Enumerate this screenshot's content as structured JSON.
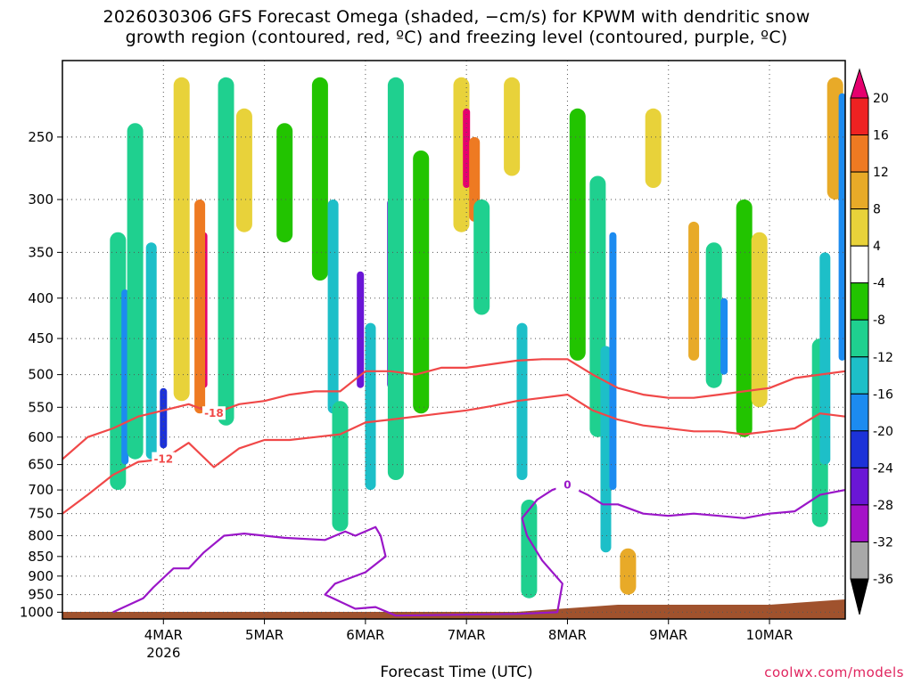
{
  "chart_data": {
    "type": "heatmap",
    "title_lines": [
      "2026030306 GFS Forecast Omega (shaded, −cm/s) for KPWM with dendritic snow",
      "growth region (contoured, red, ºC) and freezing level (contoured, purple, ºC)"
    ],
    "xlabel": "Forecast Time (UTC)",
    "ylabel": "",
    "x_ticks": [
      "4MAR",
      "5MAR",
      "6MAR",
      "7MAR",
      "8MAR",
      "9MAR",
      "10MAR"
    ],
    "x_tick_sub": [
      "2026",
      "",
      "",
      "",
      "",
      "",
      ""
    ],
    "x_range_days": [
      3.0,
      10.75
    ],
    "y_ticks": [
      250,
      300,
      350,
      400,
      450,
      500,
      550,
      600,
      650,
      700,
      750,
      800,
      850,
      900,
      950,
      1000
    ],
    "y_range_hpa": [
      200,
      1020
    ],
    "y_scale": "log-pressure",
    "grid": "dotted",
    "colorbar": {
      "ticks": [
        "20",
        "16",
        "12",
        "8",
        "4",
        "-4",
        "-8",
        "-12",
        "-16",
        "-20",
        "-24",
        "-28",
        "-32",
        "-36"
      ],
      "colors": [
        "#e6006e",
        "#ee2222",
        "#ee7a22",
        "#e8aa28",
        "#e8d23a",
        "#ffffff",
        "#22c400",
        "#1fd08f",
        "#1dbfc8",
        "#1c8bf0",
        "#1c32d8",
        "#6a16d6",
        "#a512c8",
        "#a8a8a8",
        "#000000"
      ]
    },
    "omega_features": [
      {
        "time": 3.55,
        "p_top": 330,
        "p_bot": 700,
        "value": -8
      },
      {
        "time": 3.62,
        "p_top": 390,
        "p_bot": 650,
        "value": -16
      },
      {
        "time": 3.72,
        "p_top": 240,
        "p_bot": 640,
        "value": -8
      },
      {
        "time": 3.88,
        "p_top": 340,
        "p_bot": 640,
        "value": -12
      },
      {
        "time": 4.0,
        "p_top": 520,
        "p_bot": 620,
        "value": -20
      },
      {
        "time": 4.18,
        "p_top": 210,
        "p_bot": 540,
        "value": 6
      },
      {
        "time": 4.4,
        "p_top": 330,
        "p_bot": 520,
        "value": 20
      },
      {
        "time": 4.36,
        "p_top": 300,
        "p_bot": 560,
        "value": 12
      },
      {
        "time": 4.62,
        "p_top": 210,
        "p_bot": 580,
        "value": -8
      },
      {
        "time": 4.8,
        "p_top": 230,
        "p_bot": 330,
        "value": 6
      },
      {
        "time": 5.2,
        "p_top": 240,
        "p_bot": 340,
        "value": -6
      },
      {
        "time": 5.55,
        "p_top": 210,
        "p_bot": 380,
        "value": -6
      },
      {
        "time": 5.68,
        "p_top": 300,
        "p_bot": 560,
        "value": -12
      },
      {
        "time": 5.75,
        "p_top": 540,
        "p_bot": 790,
        "value": -8
      },
      {
        "time": 5.95,
        "p_top": 370,
        "p_bot": 520,
        "value": -24
      },
      {
        "time": 6.05,
        "p_top": 430,
        "p_bot": 700,
        "value": -12
      },
      {
        "time": 6.25,
        "p_top": 300,
        "p_bot": 520,
        "value": -24
      },
      {
        "time": 6.3,
        "p_top": 210,
        "p_bot": 680,
        "value": -8
      },
      {
        "time": 6.55,
        "p_top": 260,
        "p_bot": 560,
        "value": -6
      },
      {
        "time": 6.95,
        "p_top": 210,
        "p_bot": 330,
        "value": 6
      },
      {
        "time": 7.0,
        "p_top": 230,
        "p_bot": 290,
        "value": 20
      },
      {
        "time": 7.08,
        "p_top": 250,
        "p_bot": 320,
        "value": 12
      },
      {
        "time": 7.15,
        "p_top": 300,
        "p_bot": 420,
        "value": -8
      },
      {
        "time": 7.45,
        "p_top": 210,
        "p_bot": 280,
        "value": 6
      },
      {
        "time": 7.55,
        "p_top": 430,
        "p_bot": 680,
        "value": -12
      },
      {
        "time": 7.62,
        "p_top": 720,
        "p_bot": 960,
        "value": -8
      },
      {
        "time": 8.1,
        "p_top": 230,
        "p_bot": 480,
        "value": -6
      },
      {
        "time": 8.3,
        "p_top": 280,
        "p_bot": 600,
        "value": -8
      },
      {
        "time": 8.38,
        "p_top": 460,
        "p_bot": 840,
        "value": -12
      },
      {
        "time": 8.45,
        "p_top": 330,
        "p_bot": 700,
        "value": -16
      },
      {
        "time": 8.6,
        "p_top": 830,
        "p_bot": 950,
        "value": 8
      },
      {
        "time": 8.85,
        "p_top": 230,
        "p_bot": 290,
        "value": 6
      },
      {
        "time": 9.25,
        "p_top": 320,
        "p_bot": 480,
        "value": 10
      },
      {
        "time": 9.45,
        "p_top": 340,
        "p_bot": 520,
        "value": -8
      },
      {
        "time": 9.55,
        "p_top": 400,
        "p_bot": 500,
        "value": -16
      },
      {
        "time": 9.75,
        "p_top": 300,
        "p_bot": 600,
        "value": -6
      },
      {
        "time": 9.9,
        "p_top": 330,
        "p_bot": 550,
        "value": 6
      },
      {
        "time": 10.5,
        "p_top": 450,
        "p_bot": 780,
        "value": -8
      },
      {
        "time": 10.55,
        "p_top": 350,
        "p_bot": 650,
        "value": -14
      },
      {
        "time": 10.65,
        "p_top": 210,
        "p_bot": 300,
        "value": 8
      },
      {
        "time": 10.72,
        "p_top": 220,
        "p_bot": 480,
        "value": -16
      }
    ],
    "dgz_contours": [
      {
        "level": "-18",
        "label_time": 4.5,
        "points": [
          [
            3.0,
            640
          ],
          [
            3.25,
            600
          ],
          [
            3.5,
            585
          ],
          [
            3.75,
            565
          ],
          [
            4.0,
            555
          ],
          [
            4.25,
            545
          ],
          [
            4.5,
            560
          ],
          [
            4.75,
            545
          ],
          [
            5.0,
            540
          ],
          [
            5.25,
            530
          ],
          [
            5.5,
            525
          ],
          [
            5.75,
            525
          ],
          [
            6.0,
            495
          ],
          [
            6.25,
            495
          ],
          [
            6.5,
            500
          ],
          [
            6.75,
            490
          ],
          [
            7.0,
            490
          ],
          [
            7.25,
            485
          ],
          [
            7.5,
            480
          ],
          [
            7.75,
            478
          ],
          [
            8.0,
            478
          ],
          [
            8.25,
            500
          ],
          [
            8.5,
            520
          ],
          [
            8.75,
            530
          ],
          [
            9.0,
            535
          ],
          [
            9.25,
            535
          ],
          [
            9.5,
            530
          ],
          [
            9.75,
            525
          ],
          [
            10.0,
            520
          ],
          [
            10.25,
            505
          ],
          [
            10.5,
            500
          ],
          [
            10.75,
            495
          ]
        ]
      },
      {
        "level": "-12",
        "label_time": 4.0,
        "points": [
          [
            3.0,
            750
          ],
          [
            3.25,
            710
          ],
          [
            3.5,
            670
          ],
          [
            3.75,
            645
          ],
          [
            4.0,
            640
          ],
          [
            4.25,
            610
          ],
          [
            4.5,
            655
          ],
          [
            4.75,
            620
          ],
          [
            5.0,
            605
          ],
          [
            5.25,
            605
          ],
          [
            5.5,
            600
          ],
          [
            5.75,
            595
          ],
          [
            6.0,
            575
          ],
          [
            6.25,
            570
          ],
          [
            6.5,
            565
          ],
          [
            6.75,
            560
          ],
          [
            7.0,
            555
          ],
          [
            7.25,
            548
          ],
          [
            7.5,
            540
          ],
          [
            7.75,
            535
          ],
          [
            8.0,
            530
          ],
          [
            8.25,
            555
          ],
          [
            8.5,
            570
          ],
          [
            8.75,
            580
          ],
          [
            9.0,
            585
          ],
          [
            9.25,
            590
          ],
          [
            9.5,
            590
          ],
          [
            9.75,
            595
          ],
          [
            10.0,
            590
          ],
          [
            10.25,
            585
          ],
          [
            10.5,
            560
          ],
          [
            10.75,
            565
          ]
        ]
      },
      {
        "level": "0",
        "label_time": 8.0,
        "points": [
          [
            3.5,
            1000
          ],
          [
            3.8,
            960
          ],
          [
            3.9,
            930
          ],
          [
            4.1,
            880
          ],
          [
            4.25,
            880
          ],
          [
            4.4,
            840
          ],
          [
            4.6,
            800
          ],
          [
            4.8,
            795
          ],
          [
            5.2,
            805
          ],
          [
            5.6,
            810
          ],
          [
            5.8,
            790
          ],
          [
            5.9,
            800
          ],
          [
            6.1,
            780
          ],
          [
            6.15,
            800
          ],
          [
            6.2,
            850
          ],
          [
            6.0,
            890
          ],
          [
            5.7,
            920
          ],
          [
            5.6,
            950
          ],
          [
            5.9,
            990
          ],
          [
            6.1,
            985
          ],
          [
            6.3,
            1010
          ],
          [
            7.5,
            1005
          ],
          [
            7.9,
            1000
          ],
          [
            7.95,
            920
          ],
          [
            7.75,
            860
          ],
          [
            7.6,
            800
          ],
          [
            7.55,
            760
          ],
          [
            7.7,
            720
          ],
          [
            7.85,
            700
          ],
          [
            8.0,
            690
          ],
          [
            8.2,
            710
          ],
          [
            8.35,
            730
          ],
          [
            8.5,
            730
          ],
          [
            8.75,
            750
          ],
          [
            9.0,
            755
          ],
          [
            9.25,
            750
          ],
          [
            9.5,
            755
          ],
          [
            9.75,
            760
          ],
          [
            10.0,
            750
          ],
          [
            10.25,
            745
          ],
          [
            10.5,
            710
          ],
          [
            10.75,
            700
          ]
        ]
      }
    ]
  }
}
